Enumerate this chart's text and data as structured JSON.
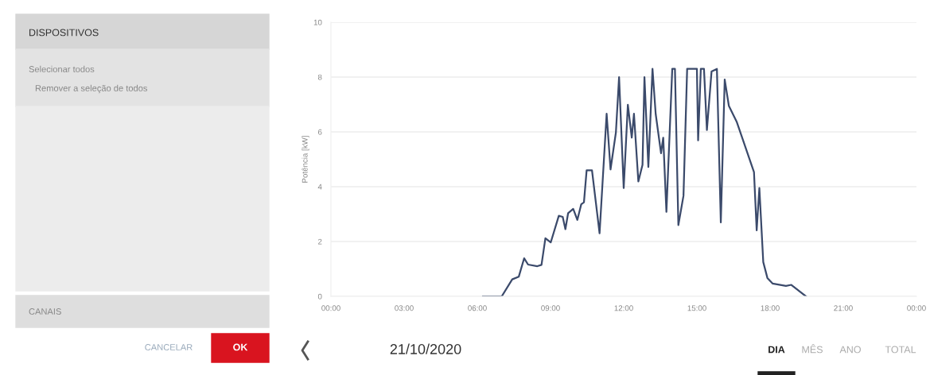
{
  "chart_data": {
    "type": "line",
    "ylabel": "Potência [kW]",
    "x": [
      6.23,
      7.0,
      7.43,
      7.7,
      7.92,
      8.08,
      8.46,
      8.63,
      8.79,
      9.01,
      9.34,
      9.5,
      9.61,
      9.72,
      9.93,
      10.1,
      10.26,
      10.37,
      10.48,
      10.7,
      11.01,
      11.3,
      11.46,
      11.68,
      11.81,
      12.0,
      12.17,
      12.33,
      12.42,
      12.6,
      12.77,
      12.85,
      13.01,
      13.18,
      13.31,
      13.53,
      13.62,
      13.75,
      13.99,
      14.1,
      14.24,
      14.45,
      14.6,
      15.0,
      15.05,
      15.16,
      15.29,
      15.41,
      15.6,
      15.82,
      15.98,
      16.14,
      16.31,
      16.63,
      17.34,
      17.45,
      17.56,
      17.72,
      17.89,
      18.1,
      18.65,
      18.87,
      19.47
    ],
    "series": [
      {
        "color": "#3b4a6b",
        "values": [
          0,
          0,
          0.62,
          0.72,
          1.39,
          1.16,
          1.1,
          1.15,
          2.12,
          1.97,
          2.94,
          2.9,
          2.45,
          3.03,
          3.19,
          2.79,
          3.36,
          3.43,
          4.6,
          4.6,
          2.3,
          6.66,
          4.63,
          5.98,
          8.0,
          3.95,
          6.99,
          5.79,
          6.66,
          4.19,
          4.8,
          8.0,
          4.72,
          8.3,
          6.66,
          5.22,
          5.79,
          3.08,
          8.3,
          8.3,
          2.6,
          3.67,
          8.3,
          8.3,
          5.69,
          8.3,
          8.3,
          6.07,
          8.2,
          8.3,
          2.7,
          7.91,
          6.95,
          6.37,
          4.53,
          2.41,
          3.95,
          1.25,
          0.67,
          0.47,
          0.38,
          0.42,
          0
        ]
      }
    ],
    "xlim": [
      0,
      24
    ],
    "xticks": [
      {
        "value": 0,
        "label": "00:00"
      },
      {
        "value": 3,
        "label": "03:00"
      },
      {
        "value": 6,
        "label": "06:00"
      },
      {
        "value": 9,
        "label": "09:00"
      },
      {
        "value": 12,
        "label": "12:00"
      },
      {
        "value": 15,
        "label": "15:00"
      },
      {
        "value": 18,
        "label": "18:00"
      },
      {
        "value": 21,
        "label": "21:00"
      },
      {
        "value": 24,
        "label": "00:00"
      }
    ],
    "ylim": [
      0,
      10
    ],
    "yticks": [
      0,
      2,
      4,
      6,
      8,
      10
    ],
    "grid": "y",
    "annotations": [
      "DISPOSITIVOS",
      "Selecionar todos",
      "Remover a seleção de todos",
      "CANAIS",
      "CANCELAR",
      "OK",
      "21/10/2020",
      "DIA",
      "MÊS",
      "ANO",
      "TOTAL"
    ]
  }
}
